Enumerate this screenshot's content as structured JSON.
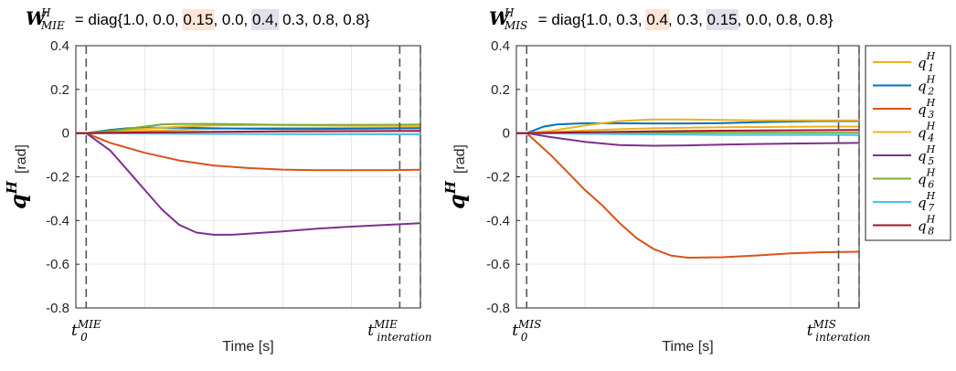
{
  "chart_data": [
    {
      "type": "line",
      "title": {
        "prefix": "W",
        "superscript": "H",
        "subscript": "MIE",
        "text_before": " = diag{1.0, 0.0, ",
        "highlight1": "0.15",
        "text_mid1": ", 0.0, ",
        "highlight2": "0.4,",
        "text_after": " 0.3, 0.8, 0.8}"
      },
      "xlabel": "Time [s]",
      "ylabel_main": "q",
      "ylabel_sup": "H",
      "ylabel_unit": "[rad]",
      "ylim": [
        -0.8,
        0.4
      ],
      "xlim": [
        0,
        1
      ],
      "yticks": [
        "-0.8",
        "-0.6",
        "-0.4",
        "-0.2",
        "0",
        "0.2",
        "0.4"
      ],
      "xtick_start": {
        "base": "t",
        "sub": "0",
        "sup": "MIE"
      },
      "xtick_end": {
        "base": "t",
        "sub": "interation",
        "sup": "MIE"
      },
      "grid": true,
      "vlines": [
        0.03,
        0.94,
        1.0
      ],
      "series": [
        {
          "name": "q1",
          "color": "#EDB120",
          "x": [
            0.03,
            0.1,
            0.2,
            0.3,
            0.4,
            0.5,
            0.6,
            0.7,
            0.8,
            0.9,
            1.0
          ],
          "values": [
            0,
            0.005,
            0.01,
            0.015,
            0.02,
            0.022,
            0.024,
            0.025,
            0.026,
            0.027,
            0.028
          ]
        },
        {
          "name": "q2",
          "color": "#0072BD",
          "x": [
            0.03,
            0.1,
            0.15,
            0.2,
            0.3,
            0.4,
            0.5,
            0.6,
            0.7,
            0.8,
            0.9,
            1.0
          ],
          "values": [
            0,
            0.015,
            0.022,
            0.025,
            0.025,
            0.022,
            0.02,
            0.019,
            0.019,
            0.02,
            0.021,
            0.022
          ]
        },
        {
          "name": "q3",
          "color": "#D95319",
          "x": [
            0.03,
            0.1,
            0.2,
            0.3,
            0.4,
            0.5,
            0.6,
            0.7,
            0.8,
            0.9,
            1.0
          ],
          "values": [
            0,
            -0.045,
            -0.09,
            -0.125,
            -0.148,
            -0.16,
            -0.167,
            -0.17,
            -0.17,
            -0.17,
            -0.168
          ]
        },
        {
          "name": "q4",
          "color": "#EDB120",
          "x": [
            0.03,
            0.1,
            0.2,
            0.3,
            0.4,
            0.5,
            0.6,
            0.7,
            0.8,
            0.9,
            1.0
          ],
          "values": [
            0,
            0.008,
            0.02,
            0.03,
            0.035,
            0.037,
            0.037,
            0.037,
            0.037,
            0.037,
            0.037
          ]
        },
        {
          "name": "q5",
          "color": "#7E2F8E",
          "x": [
            0.03,
            0.1,
            0.15,
            0.2,
            0.25,
            0.3,
            0.35,
            0.4,
            0.45,
            0.5,
            0.6,
            0.7,
            0.8,
            0.9,
            1.0
          ],
          "values": [
            0,
            -0.08,
            -0.17,
            -0.26,
            -0.35,
            -0.42,
            -0.455,
            -0.465,
            -0.465,
            -0.46,
            -0.45,
            -0.437,
            -0.428,
            -0.42,
            -0.412
          ]
        },
        {
          "name": "q6",
          "color": "#77AC30",
          "x": [
            0.03,
            0.1,
            0.2,
            0.25,
            0.3,
            0.4,
            0.5,
            0.6,
            0.7,
            0.8,
            0.9,
            1.0
          ],
          "values": [
            0,
            0.01,
            0.03,
            0.04,
            0.042,
            0.042,
            0.04,
            0.038,
            0.037,
            0.037,
            0.038,
            0.039
          ]
        },
        {
          "name": "q7",
          "color": "#4DBEEE",
          "x": [
            0.03,
            0.2,
            0.4,
            0.6,
            0.8,
            1.0
          ],
          "values": [
            0,
            -0.002,
            -0.004,
            -0.005,
            -0.005,
            -0.006
          ]
        },
        {
          "name": "q8",
          "color": "#A2142F",
          "x": [
            0.03,
            0.2,
            0.4,
            0.6,
            0.8,
            1.0
          ],
          "values": [
            0,
            0.003,
            0.006,
            0.008,
            0.009,
            0.01
          ]
        }
      ]
    },
    {
      "type": "line",
      "title": {
        "prefix": "W",
        "superscript": "H",
        "subscript": "MIS",
        "text_before": " = diag{1.0, 0.3, ",
        "highlight1": "0.4",
        "text_mid1": ", 0.3, ",
        "highlight2": "0.15",
        "text_after": ", 0.0, 0.8, 0.8}"
      },
      "xlabel": "Time [s]",
      "ylabel_main": "q",
      "ylabel_sup": "H",
      "ylabel_unit": "[rad]",
      "ylim": [
        -0.8,
        0.4
      ],
      "xlim": [
        0,
        1
      ],
      "yticks": [
        "-0.8",
        "-0.6",
        "-0.4",
        "-0.2",
        "0",
        "0.2",
        "0.4"
      ],
      "xtick_start": {
        "base": "t",
        "sub": "0",
        "sup": "MIS"
      },
      "xtick_end": {
        "base": "t",
        "sub": "interation",
        "sup": "MIS"
      },
      "grid": true,
      "vlines": [
        0.03,
        0.94,
        1.0
      ],
      "series": [
        {
          "name": "q1",
          "color": "#EDB120",
          "x": [
            0.03,
            0.1,
            0.2,
            0.3,
            0.4,
            0.5,
            0.6,
            0.7,
            0.8,
            0.9,
            1.0
          ],
          "values": [
            0,
            0.005,
            0.012,
            0.018,
            0.022,
            0.025,
            0.027,
            0.028,
            0.029,
            0.03,
            0.03
          ]
        },
        {
          "name": "q2",
          "color": "#0072BD",
          "x": [
            0.03,
            0.08,
            0.12,
            0.2,
            0.3,
            0.4,
            0.5,
            0.6,
            0.7,
            0.8,
            0.9,
            1.0
          ],
          "values": [
            0,
            0.03,
            0.04,
            0.045,
            0.045,
            0.044,
            0.044,
            0.046,
            0.05,
            0.053,
            0.055,
            0.055
          ]
        },
        {
          "name": "q3",
          "color": "#D95319",
          "x": [
            0.03,
            0.1,
            0.15,
            0.2,
            0.25,
            0.3,
            0.35,
            0.4,
            0.45,
            0.5,
            0.6,
            0.7,
            0.8,
            0.9,
            1.0
          ],
          "values": [
            0,
            -0.1,
            -0.18,
            -0.26,
            -0.33,
            -0.41,
            -0.48,
            -0.53,
            -0.56,
            -0.57,
            -0.568,
            -0.56,
            -0.55,
            -0.545,
            -0.543
          ]
        },
        {
          "name": "q4",
          "color": "#EDB120",
          "x": [
            0.03,
            0.1,
            0.2,
            0.3,
            0.4,
            0.5,
            0.6,
            0.7,
            0.8,
            0.9,
            1.0
          ],
          "values": [
            0,
            0.01,
            0.035,
            0.055,
            0.062,
            0.062,
            0.06,
            0.058,
            0.058,
            0.058,
            0.058
          ]
        },
        {
          "name": "q5",
          "color": "#7E2F8E",
          "x": [
            0.03,
            0.1,
            0.2,
            0.3,
            0.4,
            0.5,
            0.6,
            0.7,
            0.8,
            0.9,
            1.0
          ],
          "values": [
            0,
            -0.018,
            -0.04,
            -0.055,
            -0.058,
            -0.056,
            -0.053,
            -0.05,
            -0.048,
            -0.046,
            -0.045
          ]
        },
        {
          "name": "q6",
          "color": "#77AC30",
          "x": [
            0.03,
            0.2,
            0.4,
            0.6,
            0.8,
            1.0
          ],
          "values": [
            0,
            0.001,
            0.002,
            0.002,
            0.002,
            0.002
          ]
        },
        {
          "name": "q7",
          "color": "#4DBEEE",
          "x": [
            0.03,
            0.2,
            0.4,
            0.6,
            0.8,
            1.0
          ],
          "values": [
            0,
            -0.003,
            -0.006,
            -0.008,
            -0.008,
            -0.009
          ]
        },
        {
          "name": "q8",
          "color": "#A2142F",
          "x": [
            0.03,
            0.2,
            0.4,
            0.6,
            0.8,
            1.0
          ],
          "values": [
            0,
            0.004,
            0.008,
            0.011,
            0.013,
            0.014
          ]
        }
      ]
    }
  ],
  "legend": {
    "items": [
      {
        "base": "q",
        "sub": "1",
        "sup": "H",
        "color": "#EDB120"
      },
      {
        "base": "q",
        "sub": "2",
        "sup": "H",
        "color": "#0072BD"
      },
      {
        "base": "q",
        "sub": "3",
        "sup": "H",
        "color": "#D95319"
      },
      {
        "base": "q",
        "sub": "4",
        "sup": "H",
        "color": "#EDB120"
      },
      {
        "base": "q",
        "sub": "5",
        "sup": "H",
        "color": "#7E2F8E"
      },
      {
        "base": "q",
        "sub": "6",
        "sup": "H",
        "color": "#77AC30"
      },
      {
        "base": "q",
        "sub": "7",
        "sup": "H",
        "color": "#4DBEEE"
      },
      {
        "base": "q",
        "sub": "8",
        "sup": "H",
        "color": "#A2142F"
      }
    ]
  },
  "colors": {
    "highlight_orange": "#FCE4D6",
    "highlight_purple": "#E4DFEC",
    "grid": "#E6E6E6",
    "axis": "#262626",
    "vline": "#555555"
  }
}
